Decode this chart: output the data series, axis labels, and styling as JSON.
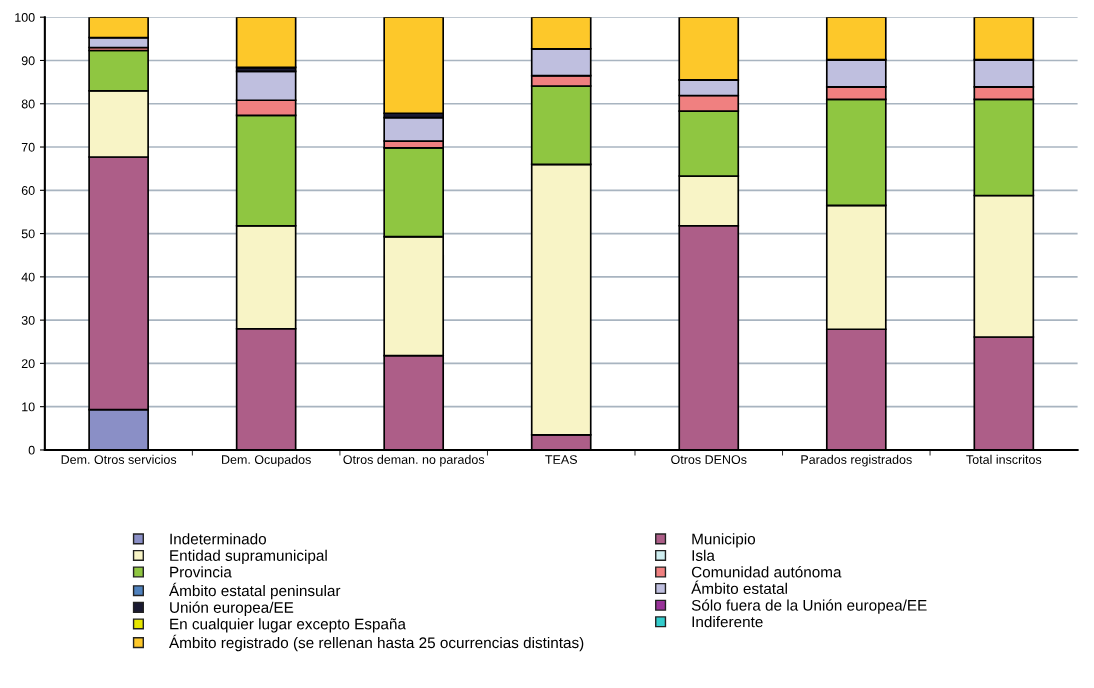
{
  "chart_data": {
    "type": "bar",
    "stacked": true,
    "categories": [
      "Dem. Otros servicios",
      "Dem. Ocupados",
      "Otros deman. no parados",
      "TEAS",
      "Otros DENOs",
      "Parados registrados",
      "Total inscritos"
    ],
    "series": [
      {
        "name": "Indeterminado",
        "color": "#8a8fc6",
        "values": [
          9.3,
          0,
          0,
          0,
          0,
          0,
          null
        ]
      },
      {
        "name": "Municipio",
        "color": "#ad5e88",
        "values": [
          58.4,
          28,
          21.8,
          3.5,
          51.8,
          27.9,
          26.1
        ]
      },
      {
        "name": "Entidad supramunicipal",
        "color": "#f8f4c6",
        "values": [
          15.3,
          23.8,
          27.5,
          62.5,
          11.5,
          28.6,
          32.7
        ]
      },
      {
        "name": "Isla",
        "color": "#cfeef0",
        "values": [
          0,
          0,
          0,
          0,
          0,
          0,
          0
        ]
      },
      {
        "name": "Provincia",
        "color": "#8fc641",
        "values": [
          9.3,
          25.5,
          20.5,
          18.1,
          15.0,
          24.5,
          22.2
        ]
      },
      {
        "name": "Comunidad autónoma",
        "color": "#f08080",
        "values": [
          0.7,
          3.5,
          1.6,
          2.4,
          3.6,
          2.9,
          2.9
        ]
      },
      {
        "name": "Ámbito estatal peninsular",
        "color": "#4f81bd",
        "values": [
          0,
          0,
          0,
          0,
          0,
          0,
          0
        ]
      },
      {
        "name": "Ámbito estatal",
        "color": "#bfbfdf",
        "values": [
          2.3,
          6.7,
          5.4,
          6.2,
          3.6,
          6.3,
          6.3
        ]
      },
      {
        "name": "Unión europea/EE",
        "color": "#1a1a33",
        "values": [
          null,
          0.9,
          1.0,
          0,
          0,
          0,
          0
        ]
      },
      {
        "name": "Sólo fuera de la Unión europea/EE",
        "color": "#993399",
        "values": [
          0,
          0,
          0,
          0,
          0,
          0,
          0
        ]
      },
      {
        "name": "En cualquier lugar excepto España",
        "color": "#e6e600",
        "values": [
          0,
          0,
          0,
          0,
          0,
          0,
          0
        ]
      },
      {
        "name": "Indiferente",
        "color": "#33cccc",
        "values": [
          0,
          0,
          0,
          0,
          0,
          0,
          0
        ]
      },
      {
        "name": "Ámbito registrado (se rellenan hasta 25 ocurrencias distintas)",
        "color": "#fdc82a",
        "values": [
          4.7,
          11.6,
          22.2,
          7.3,
          14.5,
          9.8,
          9.8
        ]
      }
    ],
    "ylim": [
      0,
      100
    ],
    "yticks": [
      0,
      10,
      20,
      30,
      40,
      50,
      60,
      70,
      80,
      90,
      100
    ],
    "grid": "y",
    "legend": "bottom",
    "marker": "square"
  }
}
